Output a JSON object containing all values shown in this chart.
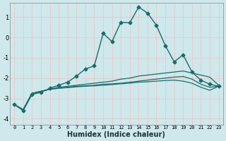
{
  "xlabel": "Humidex (Indice chaleur)",
  "background_color": "#cfe8ec",
  "grid_color": "#e8c8c8",
  "line_color": "#1a6b6b",
  "xlim": [
    -0.5,
    23.5
  ],
  "ylim": [
    -4.3,
    1.7
  ],
  "yticks": [
    -4,
    -3,
    -2,
    -1,
    0,
    1
  ],
  "xticks": [
    0,
    1,
    2,
    3,
    4,
    5,
    6,
    7,
    8,
    9,
    10,
    11,
    12,
    13,
    14,
    15,
    16,
    17,
    18,
    19,
    20,
    21,
    22,
    23
  ],
  "series": [
    {
      "x": [
        0,
        1,
        2,
        3,
        4,
        5,
        6,
        7,
        8,
        9,
        10,
        11,
        12,
        13,
        14,
        15,
        16,
        17,
        18,
        19,
        20,
        21,
        22,
        23
      ],
      "y": [
        -3.3,
        -3.6,
        -2.8,
        -2.7,
        -2.5,
        -2.35,
        -2.2,
        -1.9,
        -1.55,
        -1.4,
        0.2,
        -0.2,
        0.75,
        0.72,
        1.5,
        1.2,
        0.6,
        -0.4,
        -1.2,
        -0.85,
        -1.7,
        -2.1,
        -2.3,
        -2.4
      ],
      "marker": true,
      "marker_size": 2.5,
      "linewidth": 1.0,
      "linestyle": "-"
    },
    {
      "x": [
        0,
        1,
        2,
        3,
        4,
        5,
        6,
        7,
        8,
        9,
        10,
        11,
        12,
        13,
        14,
        15,
        16,
        17,
        18,
        19,
        20,
        21,
        22,
        23
      ],
      "y": [
        -3.3,
        -3.55,
        -2.75,
        -2.65,
        -2.55,
        -2.45,
        -2.4,
        -2.35,
        -2.3,
        -2.25,
        -2.2,
        -2.15,
        -2.05,
        -2.0,
        -1.9,
        -1.85,
        -1.8,
        -1.75,
        -1.7,
        -1.65,
        -1.75,
        -1.85,
        -1.95,
        -2.35
      ],
      "marker": false,
      "linewidth": 0.9,
      "linestyle": "-"
    },
    {
      "x": [
        0,
        1,
        2,
        3,
        4,
        5,
        6,
        7,
        8,
        9,
        10,
        11,
        12,
        13,
        14,
        15,
        16,
        17,
        18,
        19,
        20,
        21,
        22,
        23
      ],
      "y": [
        -3.3,
        -3.55,
        -2.75,
        -2.65,
        -2.55,
        -2.5,
        -2.45,
        -2.4,
        -2.38,
        -2.35,
        -2.3,
        -2.28,
        -2.25,
        -2.2,
        -2.15,
        -2.1,
        -2.05,
        -2.0,
        -1.95,
        -1.92,
        -2.05,
        -2.3,
        -2.45,
        -2.4
      ],
      "marker": false,
      "linewidth": 0.9,
      "linestyle": "-"
    },
    {
      "x": [
        0,
        1,
        2,
        3,
        4,
        5,
        6,
        7,
        8,
        9,
        10,
        11,
        12,
        13,
        14,
        15,
        16,
        17,
        18,
        19,
        20,
        21,
        22,
        23
      ],
      "y": [
        -3.3,
        -3.55,
        -2.75,
        -2.65,
        -2.55,
        -2.5,
        -2.47,
        -2.43,
        -2.4,
        -2.38,
        -2.35,
        -2.32,
        -2.28,
        -2.25,
        -2.2,
        -2.18,
        -2.15,
        -2.12,
        -2.1,
        -2.15,
        -2.25,
        -2.45,
        -2.6,
        -2.4
      ],
      "marker": false,
      "linewidth": 0.9,
      "linestyle": "-"
    }
  ]
}
